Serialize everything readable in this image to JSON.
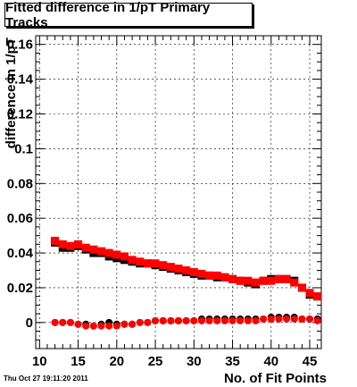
{
  "title": "Fitted difference in 1/pT Primary Tracks",
  "footer": "Thu Oct 27 19:11:20 2011",
  "colors": {
    "series_black": "#000000",
    "series_red": "#ff0000",
    "grid": "#000000"
  },
  "chart_data": {
    "type": "scatter",
    "title": "Fitted difference in 1/pT Primary Tracks",
    "xlabel": "No. of Fit Points",
    "ylabel": "difference in 1/pT",
    "xlim": [
      9.5,
      46.5
    ],
    "ylim": [
      -0.015,
      0.165
    ],
    "xticks": [
      10,
      15,
      20,
      25,
      30,
      35,
      40,
      45
    ],
    "yticks": [
      0,
      0.02,
      0.04,
      0.06,
      0.08,
      0.1,
      0.12,
      0.14,
      0.16
    ],
    "ytick_labels": [
      "0",
      "0.02",
      "0.04",
      "0.06",
      "0.08",
      "0.1",
      "0.12",
      "0.14",
      "0.16"
    ],
    "grid": true,
    "series": [
      {
        "color": "black",
        "marker": "square",
        "x": [
          12,
          13,
          14,
          15,
          16,
          17,
          18,
          19,
          20,
          21,
          22,
          23,
          24,
          25,
          26,
          27,
          28,
          29,
          30,
          31,
          32,
          33,
          34,
          35,
          36,
          37,
          38,
          39,
          40,
          41,
          42,
          43,
          44,
          45,
          46
        ],
        "y": [
          0.046,
          0.043,
          0.043,
          0.044,
          0.042,
          0.04,
          0.04,
          0.038,
          0.037,
          0.036,
          0.035,
          0.034,
          0.034,
          0.033,
          0.032,
          0.031,
          0.03,
          0.029,
          0.028,
          0.027,
          0.027,
          0.026,
          0.026,
          0.025,
          0.024,
          0.023,
          0.022,
          0.024,
          0.025,
          0.025,
          0.025,
          0.024,
          0.02,
          0.016,
          0.015
        ]
      },
      {
        "color": "red",
        "marker": "square",
        "x": [
          12,
          13,
          14,
          15,
          16,
          17,
          18,
          19,
          20,
          21,
          22,
          23,
          24,
          25,
          26,
          27,
          28,
          29,
          30,
          31,
          32,
          33,
          34,
          35,
          36,
          37,
          38,
          39,
          40,
          41,
          42,
          43,
          44,
          45,
          46
        ],
        "y": [
          0.047,
          0.045,
          0.044,
          0.045,
          0.043,
          0.042,
          0.041,
          0.04,
          0.039,
          0.038,
          0.036,
          0.035,
          0.034,
          0.034,
          0.033,
          0.032,
          0.031,
          0.03,
          0.029,
          0.028,
          0.027,
          0.027,
          0.026,
          0.025,
          0.024,
          0.024,
          0.023,
          0.024,
          0.024,
          0.025,
          0.025,
          0.023,
          0.02,
          0.017,
          0.015
        ]
      },
      {
        "color": "black",
        "marker": "circle",
        "x": [
          12,
          13,
          14,
          15,
          16,
          17,
          18,
          19,
          20,
          21,
          22,
          23,
          24,
          25,
          26,
          27,
          28,
          29,
          30,
          31,
          32,
          33,
          34,
          35,
          36,
          37,
          38,
          39,
          40,
          41,
          42,
          43,
          44,
          45,
          46
        ],
        "y": [
          0.0,
          0.0,
          0.0,
          -0.001,
          -0.001,
          -0.002,
          -0.001,
          0.0,
          -0.001,
          -0.001,
          -0.001,
          0.0,
          0.0,
          0.001,
          0.001,
          0.001,
          0.001,
          0.001,
          0.001,
          0.002,
          0.002,
          0.002,
          0.002,
          0.002,
          0.002,
          0.002,
          0.002,
          0.002,
          0.003,
          0.003,
          0.003,
          0.003,
          0.002,
          0.002,
          0.002
        ]
      },
      {
        "color": "red",
        "marker": "circle",
        "x": [
          12,
          13,
          14,
          15,
          16,
          17,
          18,
          19,
          20,
          21,
          22,
          23,
          24,
          25,
          26,
          27,
          28,
          29,
          30,
          31,
          32,
          33,
          34,
          35,
          36,
          37,
          38,
          39,
          40,
          41,
          42,
          43,
          44,
          45,
          46
        ],
        "y": [
          0.0,
          0.0,
          0.0,
          -0.001,
          -0.002,
          -0.002,
          -0.002,
          -0.002,
          -0.002,
          -0.001,
          -0.001,
          0.0,
          0.0,
          0.001,
          0.001,
          0.001,
          0.001,
          0.001,
          0.001,
          0.001,
          0.001,
          0.001,
          0.001,
          0.001,
          0.001,
          0.001,
          0.001,
          0.002,
          0.002,
          0.002,
          0.002,
          0.002,
          0.002,
          0.002,
          0.001
        ]
      }
    ]
  }
}
